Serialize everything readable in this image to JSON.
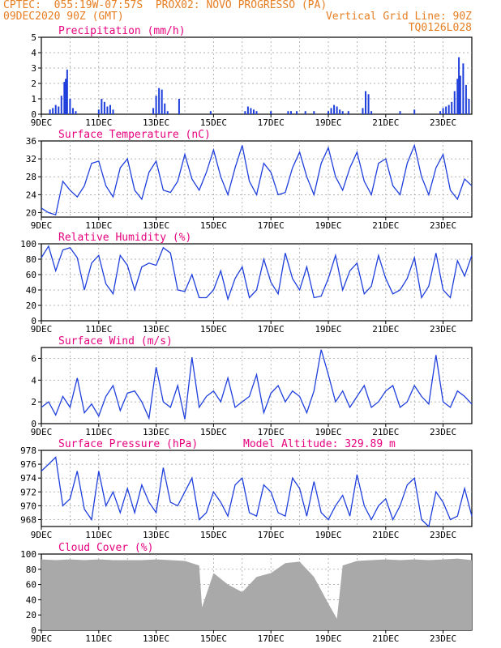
{
  "header": {
    "line1_left": "CPTEC:  055:19W-07:57S  PROX02: NOVO PROGRESSO (PA)",
    "line2_left": "09DEC2020 90Z (GMT)",
    "line2_right": "Vertical Grid Line: 90Z",
    "line3_right": "TQ0126L028"
  },
  "colors": {
    "header": "#e67e22",
    "panel_title": "#e6007e",
    "line": "#1f3fdc",
    "cloud": "#a9a9a9"
  },
  "x_axis": {
    "ticks": [
      "9DEC",
      "11DEC",
      "13DEC",
      "15DEC",
      "17DEC",
      "19DEC",
      "21DEC",
      "23DEC"
    ],
    "start_day": 9,
    "end_day": 24
  },
  "panels": {
    "precip": {
      "title": "Precipitation (mm/h)",
      "yticks": [
        "0",
        "1",
        "2",
        "3",
        "4",
        "5"
      ]
    },
    "temp": {
      "title": "Surface Temperature (nC)",
      "yticks": [
        "20",
        "24",
        "28",
        "32",
        "36"
      ]
    },
    "rh": {
      "title": "Relative Humidity (%)",
      "yticks": [
        "0",
        "20",
        "40",
        "60",
        "80",
        "100"
      ]
    },
    "wind": {
      "title": "Surface Wind (m/s)",
      "yticks": [
        "0",
        "2",
        "4",
        "6"
      ]
    },
    "pres": {
      "title": "Surface Pressure (hPa)",
      "extra": "Model Altitude: 329.89 m",
      "yticks": [
        "968",
        "970",
        "972",
        "974",
        "976",
        "978"
      ]
    },
    "cloud": {
      "title": "Cloud Cover (%)",
      "yticks": [
        "0",
        "20",
        "40",
        "60",
        "80",
        "100"
      ]
    }
  },
  "chart_data": [
    {
      "type": "bar",
      "title": "Precipitation (mm/h)",
      "ylim": [
        0,
        5
      ],
      "x": [
        9.3,
        9.4,
        9.5,
        9.6,
        9.7,
        9.8,
        9.85,
        9.9,
        10.0,
        10.1,
        10.2,
        11.0,
        11.1,
        11.2,
        11.3,
        11.4,
        11.5,
        12.9,
        13.0,
        13.1,
        13.2,
        13.3,
        13.4,
        13.8,
        14.9,
        16.1,
        16.2,
        16.3,
        16.4,
        16.5,
        17.0,
        17.6,
        17.7,
        17.9,
        18.2,
        18.5,
        19.0,
        19.1,
        19.2,
        19.3,
        19.4,
        19.5,
        19.7,
        20.2,
        20.3,
        20.4,
        20.5,
        21.5,
        22.0,
        22.9,
        23.0,
        23.1,
        23.2,
        23.3,
        23.4,
        23.5,
        23.55,
        23.6,
        23.7,
        23.8,
        23.9
      ],
      "y": [
        0.3,
        0.4,
        0.6,
        0.5,
        1.2,
        2.1,
        2.3,
        2.9,
        1.0,
        0.4,
        0.2,
        0.3,
        1.0,
        0.8,
        0.5,
        0.6,
        0.3,
        0.4,
        1.2,
        1.7,
        1.6,
        0.7,
        0.2,
        1.0,
        0.2,
        0.2,
        0.5,
        0.4,
        0.3,
        0.2,
        0.2,
        0.2,
        0.2,
        0.2,
        0.2,
        0.2,
        0.2,
        0.4,
        0.6,
        0.5,
        0.3,
        0.2,
        0.2,
        0.4,
        1.5,
        1.3,
        0.2,
        0.2,
        0.3,
        0.2,
        0.4,
        0.5,
        0.6,
        0.8,
        1.5,
        2.3,
        3.7,
        2.5,
        3.3,
        1.9,
        1.0
      ]
    },
    {
      "type": "line",
      "title": "Surface Temperature (nC)",
      "ylim": [
        19,
        36
      ],
      "x": [
        9.0,
        9.25,
        9.5,
        9.75,
        10.0,
        10.25,
        10.5,
        10.75,
        11.0,
        11.25,
        11.5,
        11.75,
        12.0,
        12.25,
        12.5,
        12.75,
        13.0,
        13.25,
        13.5,
        13.75,
        14.0,
        14.25,
        14.5,
        14.75,
        15.0,
        15.25,
        15.5,
        15.75,
        16.0,
        16.25,
        16.5,
        16.75,
        17.0,
        17.25,
        17.5,
        17.75,
        18.0,
        18.25,
        18.5,
        18.75,
        19.0,
        19.25,
        19.5,
        19.75,
        20.0,
        20.25,
        20.5,
        20.75,
        21.0,
        21.25,
        21.5,
        21.75,
        22.0,
        22.25,
        22.5,
        22.75,
        23.0,
        23.25,
        23.5,
        23.75,
        24.0
      ],
      "y": [
        21,
        20,
        19.5,
        27,
        25,
        23.5,
        26,
        31,
        31.5,
        26,
        23.5,
        30,
        32,
        25,
        23,
        29,
        31.5,
        25,
        24.5,
        27,
        33,
        27.5,
        25,
        29,
        34,
        28,
        24,
        30,
        35,
        27,
        24,
        31,
        29,
        24,
        24.5,
        30,
        33.5,
        28,
        24,
        31,
        34.5,
        28,
        25,
        30,
        33.5,
        27,
        24,
        31,
        32,
        26,
        24,
        31,
        35,
        28,
        24,
        30,
        33,
        25,
        23,
        27.5,
        26
      ]
    },
    {
      "type": "line",
      "title": "Relative Humidity (%)",
      "ylim": [
        0,
        100
      ],
      "x": [
        9.0,
        9.25,
        9.5,
        9.75,
        10.0,
        10.25,
        10.5,
        10.75,
        11.0,
        11.25,
        11.5,
        11.75,
        12.0,
        12.25,
        12.5,
        12.75,
        13.0,
        13.25,
        13.5,
        13.75,
        14.0,
        14.25,
        14.5,
        14.75,
        15.0,
        15.25,
        15.5,
        15.75,
        16.0,
        16.25,
        16.5,
        16.75,
        17.0,
        17.25,
        17.5,
        17.75,
        18.0,
        18.25,
        18.5,
        18.75,
        19.0,
        19.25,
        19.5,
        19.75,
        20.0,
        20.25,
        20.5,
        20.75,
        21.0,
        21.25,
        21.5,
        21.75,
        22.0,
        22.25,
        22.5,
        22.75,
        23.0,
        23.25,
        23.5,
        23.75,
        24.0
      ],
      "y": [
        82,
        97,
        65,
        92,
        95,
        82,
        40,
        75,
        85,
        48,
        35,
        85,
        72,
        40,
        70,
        75,
        72,
        95,
        88,
        40,
        38,
        60,
        30,
        30,
        40,
        65,
        28,
        55,
        70,
        30,
        40,
        80,
        50,
        35,
        88,
        55,
        40,
        70,
        30,
        32,
        55,
        85,
        40,
        65,
        75,
        35,
        45,
        85,
        55,
        35,
        40,
        55,
        82,
        30,
        45,
        88,
        40,
        30,
        78,
        58,
        85
      ]
    },
    {
      "type": "line",
      "title": "Surface Wind (m/s)",
      "ylim": [
        0,
        7
      ],
      "x": [
        9.0,
        9.25,
        9.5,
        9.75,
        10.0,
        10.25,
        10.5,
        10.75,
        11.0,
        11.25,
        11.5,
        11.75,
        12.0,
        12.25,
        12.5,
        12.75,
        13.0,
        13.25,
        13.5,
        13.75,
        14.0,
        14.25,
        14.5,
        14.75,
        15.0,
        15.25,
        15.5,
        15.75,
        16.0,
        16.25,
        16.5,
        16.75,
        17.0,
        17.25,
        17.5,
        17.75,
        18.0,
        18.25,
        18.5,
        18.75,
        19.0,
        19.25,
        19.5,
        19.75,
        20.0,
        20.25,
        20.5,
        20.75,
        21.0,
        21.25,
        21.5,
        21.75,
        22.0,
        22.25,
        22.5,
        22.75,
        23.0,
        23.25,
        23.5,
        23.75,
        24.0
      ],
      "y": [
        1.5,
        2.0,
        0.8,
        2.5,
        1.5,
        4.2,
        1.0,
        1.8,
        0.7,
        2.5,
        3.5,
        1.2,
        2.8,
        3.0,
        2.0,
        0.5,
        5.2,
        2.0,
        1.5,
        3.5,
        0.4,
        6.1,
        1.5,
        2.5,
        3.0,
        2.0,
        4.2,
        1.5,
        2.0,
        2.5,
        4.5,
        1.0,
        2.8,
        3.5,
        2.0,
        3.0,
        2.5,
        1.0,
        3.0,
        6.8,
        4.5,
        2.0,
        3.0,
        1.5,
        2.5,
        3.5,
        1.5,
        2.0,
        3.0,
        3.5,
        1.5,
        2.0,
        3.5,
        2.5,
        1.8,
        6.3,
        2.0,
        1.5,
        3.0,
        2.5,
        1.8
      ]
    },
    {
      "type": "line",
      "title": "Surface Pressure (hPa)",
      "ylim": [
        967,
        978
      ],
      "x": [
        9.0,
        9.25,
        9.5,
        9.75,
        10.0,
        10.25,
        10.5,
        10.75,
        11.0,
        11.25,
        11.5,
        11.75,
        12.0,
        12.25,
        12.5,
        12.75,
        13.0,
        13.25,
        13.5,
        13.75,
        14.0,
        14.25,
        14.5,
        14.75,
        15.0,
        15.25,
        15.5,
        15.75,
        16.0,
        16.25,
        16.5,
        16.75,
        17.0,
        17.25,
        17.5,
        17.75,
        18.0,
        18.25,
        18.5,
        18.75,
        19.0,
        19.25,
        19.5,
        19.75,
        20.0,
        20.25,
        20.5,
        20.75,
        21.0,
        21.25,
        21.5,
        21.75,
        22.0,
        22.25,
        22.5,
        22.75,
        23.0,
        23.25,
        23.5,
        23.75,
        24.0
      ],
      "y": [
        975,
        976,
        977,
        970,
        971,
        975,
        969.5,
        968,
        975,
        970,
        972,
        969,
        972.5,
        969,
        973,
        970.5,
        969,
        975.5,
        970.5,
        970,
        972,
        974,
        968,
        969,
        972,
        970.5,
        968.5,
        973,
        974,
        969,
        968.5,
        973,
        972,
        969,
        968.5,
        974,
        972.5,
        968.5,
        973.5,
        969,
        968,
        970,
        971.5,
        968.5,
        974.5,
        970,
        968,
        970,
        971,
        968,
        970,
        973,
        974,
        968,
        967,
        972,
        970.5,
        968,
        968.5,
        972.5,
        968.5
      ]
    },
    {
      "type": "area",
      "title": "Cloud Cover (%)",
      "ylim": [
        0,
        100
      ],
      "x": [
        9.0,
        9.5,
        10.0,
        10.5,
        11.0,
        11.5,
        12.0,
        12.5,
        13.0,
        13.5,
        14.0,
        14.5,
        14.6,
        15.0,
        15.5,
        16.0,
        16.5,
        17.0,
        17.5,
        18.0,
        18.5,
        19.0,
        19.3,
        19.5,
        20.0,
        20.5,
        21.0,
        21.5,
        22.0,
        22.5,
        23.0,
        23.5,
        24.0
      ],
      "y": [
        93,
        92,
        93,
        92,
        93,
        92,
        92,
        92,
        93,
        92,
        91,
        85,
        30,
        75,
        60,
        50,
        70,
        75,
        88,
        90,
        70,
        35,
        15,
        85,
        91,
        92,
        93,
        92,
        93,
        92,
        93,
        94,
        92
      ]
    }
  ]
}
